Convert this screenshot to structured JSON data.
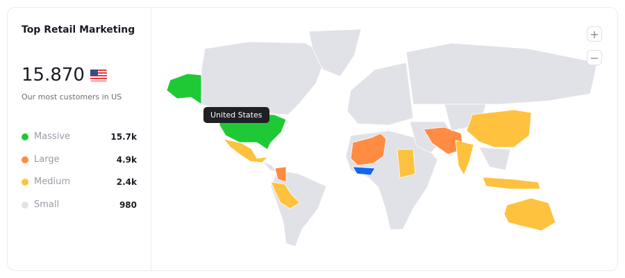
{
  "title": "Top Retail Marketing",
  "total": "15.870",
  "subtitle": "Our most customers in US",
  "flag_icon": "us-flag-icon",
  "legend": [
    {
      "label": "Massive",
      "value": "15.7k",
      "color": "#1ec935"
    },
    {
      "label": "Large",
      "value": "4.9k",
      "color": "#ff8c42"
    },
    {
      "label": "Medium",
      "value": "2.4k",
      "color": "#ffc23f"
    },
    {
      "label": "Small",
      "value": "980",
      "color": "#e1e1e8"
    }
  ],
  "highlight_color": "#1166ee",
  "tooltip": "United States",
  "zoom_in": "+",
  "zoom_out": "−"
}
